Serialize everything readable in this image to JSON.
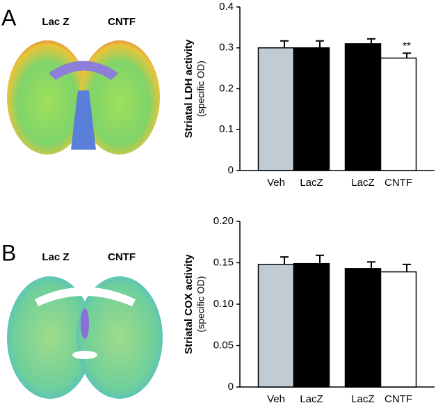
{
  "chart_data": [
    {
      "type": "bar",
      "panel_label": "A",
      "image_labels": [
        "Lac Z",
        "CNTF"
      ],
      "ylabel": [
        "Striatal LDH activity",
        "(specific OD)"
      ],
      "categories": [
        "Veh",
        "LacZ",
        "LacZ",
        "CNTF"
      ],
      "values": [
        0.3,
        0.3,
        0.31,
        0.275
      ],
      "errors": [
        0.017,
        0.017,
        0.012,
        0.012
      ],
      "value_annotations": [
        null,
        null,
        null,
        "**"
      ],
      "colors": [
        "#c0cbd3",
        "#000000",
        "#000000",
        "#ffffff"
      ],
      "ylim": [
        0,
        0.4
      ],
      "yticks": [
        0,
        0.1,
        0.2,
        0.3,
        0.4
      ],
      "grid": false
    },
    {
      "type": "bar",
      "panel_label": "B",
      "image_labels": [
        "Lac Z",
        "CNTF"
      ],
      "ylabel": [
        "Striatal COX activity",
        "(specific OD)"
      ],
      "categories": [
        "Veh",
        "LacZ",
        "LacZ",
        "CNTF"
      ],
      "values": [
        0.148,
        0.149,
        0.143,
        0.139
      ],
      "errors": [
        0.009,
        0.01,
        0.008,
        0.009
      ],
      "value_annotations": [
        null,
        null,
        null,
        null
      ],
      "colors": [
        "#c0cbd3",
        "#000000",
        "#000000",
        "#ffffff"
      ],
      "ylim": [
        0,
        0.2
      ],
      "yticks": [
        0,
        0.05,
        {
          "value": 0.1,
          "label": "0.10"
        },
        0.15,
        {
          "value": 0.2,
          "label": "0.20"
        }
      ],
      "grid": false
    }
  ]
}
